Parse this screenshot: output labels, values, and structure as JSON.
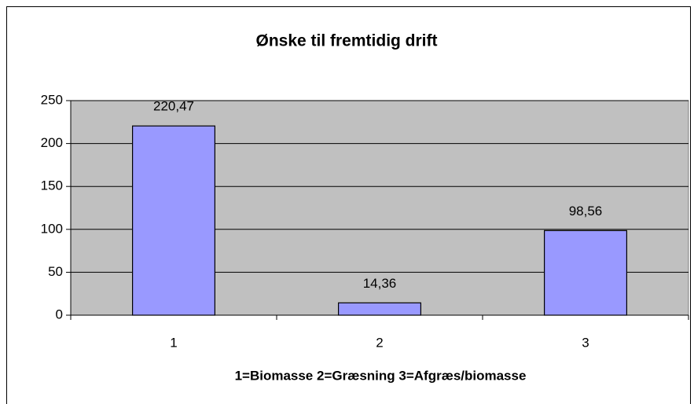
{
  "chart_data": {
    "type": "bar",
    "title": "Ønske til fremtidig drift",
    "x_label": "1=Biomasse 2=Græsning 3=Afgræs/biomasse",
    "categories": [
      "1",
      "2",
      "3"
    ],
    "values": [
      220.47,
      14.36,
      98.56
    ],
    "value_labels": [
      "220,47",
      "14,36",
      "98,56"
    ],
    "color": "#9999ff",
    "ylim": [
      0,
      250
    ],
    "yticks": [
      0,
      50,
      100,
      150,
      200,
      250
    ],
    "grid": true
  }
}
